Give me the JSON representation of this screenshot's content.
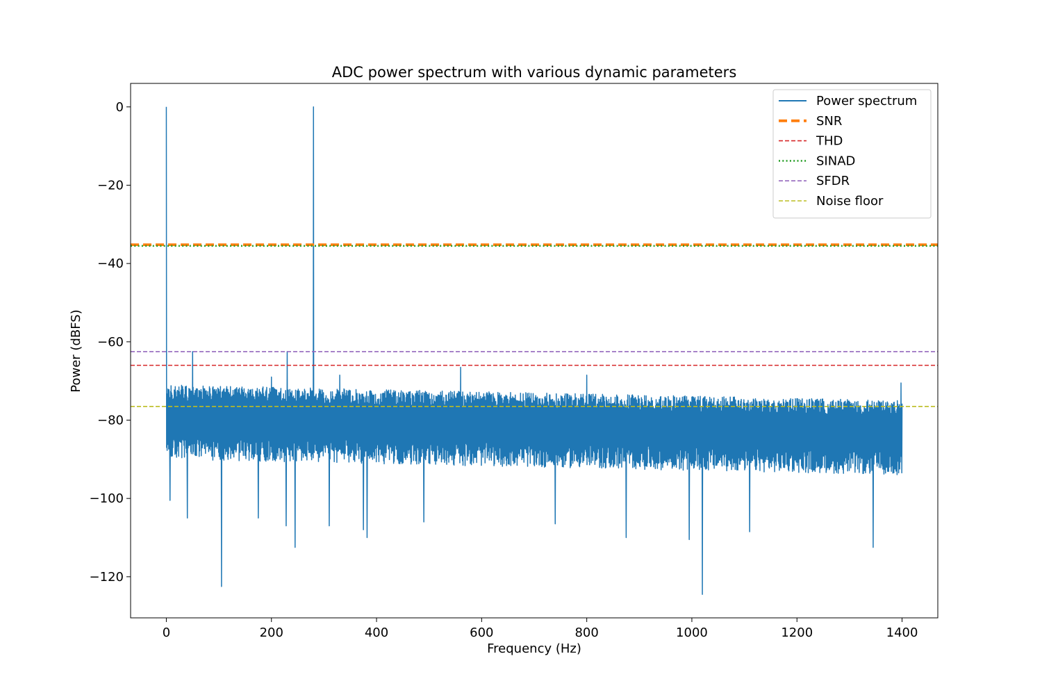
{
  "chart_data": {
    "type": "line",
    "title": "ADC power spectrum with various dynamic parameters",
    "xlabel": "Frequency (Hz)",
    "ylabel": "Power (dBFS)",
    "xlim": [
      -68,
      1468
    ],
    "ylim": [
      -130.5,
      6
    ],
    "xticks": [
      0,
      200,
      400,
      600,
      800,
      1000,
      1200,
      1400
    ],
    "xtick_labels": [
      "0",
      "200",
      "400",
      "600",
      "800",
      "1000",
      "1200",
      "1400"
    ],
    "yticks": [
      0,
      -20,
      -40,
      -60,
      -80,
      -100,
      -120
    ],
    "ytick_labels": [
      "0",
      "−20",
      "−40",
      "−60",
      "−80",
      "−100",
      "−120"
    ],
    "grid": false,
    "legend_position": "top-right",
    "series": [
      {
        "name": "Power spectrum",
        "kind": "spectrum",
        "color": "#1f77b4",
        "x_range": [
          0,
          1400
        ],
        "noise_floor_approx": -80,
        "noise_band_top": [
          -71,
          -75
        ],
        "noise_band_bottom": [
          -90,
          -94
        ],
        "peaks": [
          {
            "x": 0,
            "y": 0
          },
          {
            "x": 280,
            "y": 0
          },
          {
            "x": 50,
            "y": -62.5
          },
          {
            "x": 230,
            "y": -62.5
          },
          {
            "x": 560,
            "y": -66.5
          },
          {
            "x": 330,
            "y": -68.5
          },
          {
            "x": 200,
            "y": -69
          },
          {
            "x": 800,
            "y": -68.5
          },
          {
            "x": 1398,
            "y": -70.5
          }
        ],
        "dips": [
          {
            "x": 7,
            "y": -100.5
          },
          {
            "x": 40,
            "y": -105
          },
          {
            "x": 105,
            "y": -122.5
          },
          {
            "x": 175,
            "y": -105
          },
          {
            "x": 228,
            "y": -107
          },
          {
            "x": 245,
            "y": -112.5
          },
          {
            "x": 310,
            "y": -107
          },
          {
            "x": 375,
            "y": -108
          },
          {
            "x": 382,
            "y": -110
          },
          {
            "x": 490,
            "y": -106
          },
          {
            "x": 740,
            "y": -106.5
          },
          {
            "x": 875,
            "y": -110
          },
          {
            "x": 995,
            "y": -110.5
          },
          {
            "x": 1020,
            "y": -124.5
          },
          {
            "x": 1110,
            "y": -108.5
          },
          {
            "x": 1345,
            "y": -112.5
          }
        ]
      },
      {
        "name": "SNR",
        "kind": "hline",
        "y": -35.2,
        "color": "#ff7f0e",
        "dash": "12,6",
        "width": 3.8
      },
      {
        "name": "THD",
        "kind": "hline",
        "y": -66.0,
        "color": "#d62728",
        "dash": "6,3",
        "width": 1.6
      },
      {
        "name": "SINAD",
        "kind": "hline",
        "y": -35.5,
        "color": "#2ca02c",
        "dash": "2,3.3",
        "width": 2.6
      },
      {
        "name": "SFDR",
        "kind": "hline",
        "y": -62.5,
        "color": "#9467bd",
        "dash": "6,3",
        "width": 1.6
      },
      {
        "name": "Noise floor",
        "kind": "hline",
        "y": -76.5,
        "color": "#bcbd22",
        "dash": "6,3",
        "width": 1.6
      }
    ]
  }
}
